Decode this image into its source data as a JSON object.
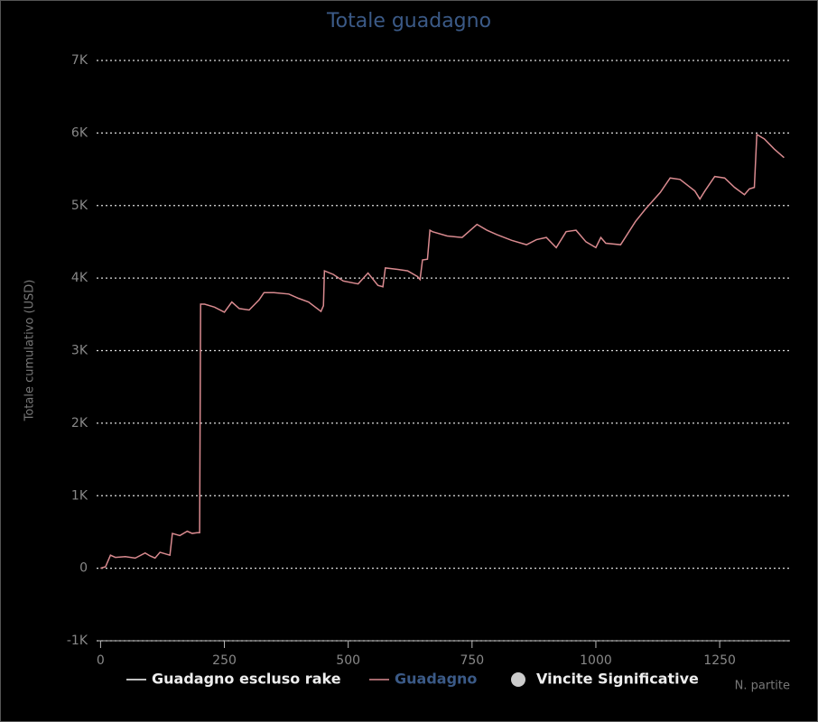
{
  "chart_data": {
    "type": "line",
    "title": "Totale guadagno",
    "y_label": "Totale cumulativo (USD)",
    "x_label": "N. partite",
    "xlim": [
      -8,
      1392
    ],
    "xticks": [
      0,
      250,
      500,
      750,
      1000,
      1250
    ],
    "ylim": [
      -1000,
      7000
    ],
    "yticks": [
      {
        "value": -1000,
        "label": "-1K"
      },
      0,
      {
        "value": 1000,
        "label": "1K"
      },
      {
        "value": 2000,
        "label": "2K"
      },
      {
        "value": 3000,
        "label": "3K"
      },
      {
        "value": 4000,
        "label": "4K"
      },
      {
        "value": 5000,
        "label": "5K"
      },
      {
        "value": 6000,
        "label": "6K"
      },
      {
        "value": 7000,
        "label": "7K"
      }
    ],
    "grid": true,
    "legend_items": [
      {
        "name": "Guadagno escluso rake",
        "color": "#ffffff",
        "symbol": "line"
      },
      {
        "name": "Vincite Significative",
        "color": "#cccccc",
        "symbol": "circle"
      }
    ],
    "series": [
      {
        "name": "Guadagno",
        "color": "#d98a8f",
        "x": [
          0,
          10,
          20,
          30,
          50,
          70,
          90,
          100,
          110,
          120,
          140,
          145,
          160,
          175,
          185,
          195,
          200,
          202,
          210,
          230,
          250,
          265,
          280,
          300,
          320,
          330,
          350,
          380,
          400,
          420,
          445,
          450,
          452,
          470,
          490,
          520,
          540,
          560,
          570,
          575,
          600,
          620,
          640,
          645,
          650,
          660,
          665,
          670,
          700,
          730,
          760,
          780,
          800,
          830,
          860,
          880,
          900,
          920,
          940,
          960,
          980,
          1000,
          1010,
          1020,
          1050,
          1080,
          1100,
          1130,
          1150,
          1170,
          1200,
          1210,
          1220,
          1240,
          1260,
          1280,
          1300,
          1310,
          1320,
          1325,
          1340,
          1360,
          1380
        ],
        "values": [
          0,
          20,
          180,
          150,
          160,
          140,
          210,
          170,
          140,
          220,
          180,
          480,
          450,
          510,
          480,
          490,
          490,
          3640,
          3640,
          3600,
          3530,
          3670,
          3580,
          3560,
          3700,
          3800,
          3800,
          3780,
          3720,
          3670,
          3540,
          3620,
          4100,
          4050,
          3960,
          3920,
          4070,
          3900,
          3880,
          4140,
          4120,
          4100,
          4020,
          3980,
          4250,
          4260,
          4660,
          4640,
          4580,
          4560,
          4740,
          4660,
          4600,
          4520,
          4460,
          4530,
          4560,
          4420,
          4640,
          4660,
          4500,
          4420,
          4560,
          4480,
          4460,
          4780,
          4950,
          5180,
          5380,
          5360,
          5200,
          5090,
          5200,
          5400,
          5380,
          5250,
          5150,
          5230,
          5250,
          5980,
          5920,
          5780,
          5660
        ]
      }
    ]
  }
}
